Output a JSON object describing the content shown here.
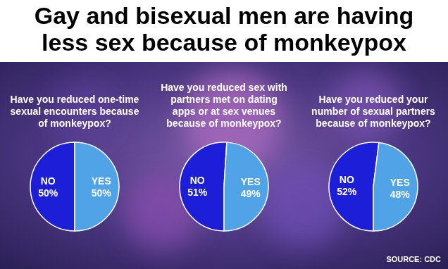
{
  "title": "Gay and bisexual men are having less sex because of monkeypox",
  "source": "SOURCE: CDC",
  "chart_data": [
    {
      "type": "pie",
      "title": "Have you reduced one-time sexual encounters because of monkeypox?",
      "categories": [
        "NO",
        "YES"
      ],
      "values": [
        50,
        50
      ],
      "value_labels": [
        "50%",
        "50%"
      ],
      "colors": [
        "#1c1ed8",
        "#4fa3e6"
      ],
      "data_labels": true
    },
    {
      "type": "pie",
      "title": "Have you reduced sex with partners met on dating apps or at sex venues because of monkeypox?",
      "categories": [
        "NO",
        "YES"
      ],
      "values": [
        51,
        49
      ],
      "value_labels": [
        "51%",
        "49%"
      ],
      "colors": [
        "#1c1ed8",
        "#4fa3e6"
      ],
      "data_labels": true
    },
    {
      "type": "pie",
      "title": "Have you reduced your number of sexual partners because of monkeypox?",
      "categories": [
        "NO",
        "YES"
      ],
      "values": [
        52,
        48
      ],
      "value_labels": [
        "52%",
        "48%"
      ],
      "colors": [
        "#1c1ed8",
        "#4fa3e6"
      ],
      "data_labels": true
    }
  ]
}
